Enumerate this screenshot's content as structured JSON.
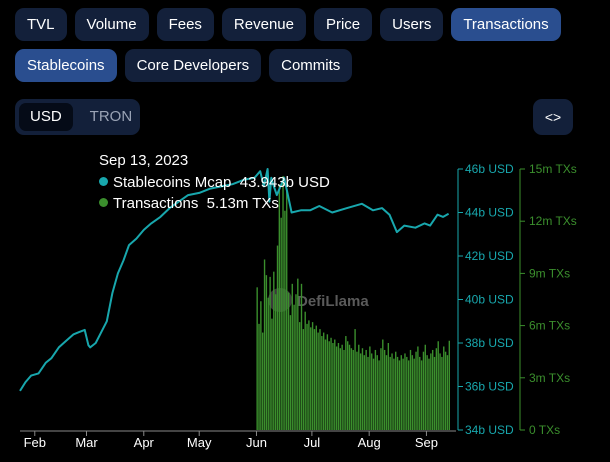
{
  "nav": {
    "row1": [
      "TVL",
      "Volume",
      "Fees",
      "Revenue",
      "Price",
      "Users",
      "Transactions"
    ],
    "row2": [
      "Stablecoins",
      "Core Developers",
      "Commits"
    ],
    "active": [
      "Transactions",
      "Stablecoins"
    ]
  },
  "currency_toggle": {
    "options": [
      "USD",
      "TRON"
    ],
    "selected": "USD"
  },
  "embed_label": "<>",
  "tooltip": {
    "date": "Sep 13, 2023",
    "line1_label": "Stablecoins Mcap",
    "line1_value": "43.943b USD",
    "line2_label": "Transactions",
    "line2_value": "5.13m TXs"
  },
  "watermark": "DefiLlama",
  "colors": {
    "mcap": "#18a7ad",
    "transactions": "#3b8f2d",
    "pill_active": "#2a4e8f",
    "pill": "#13203a"
  },
  "chart_data": {
    "type": "line",
    "x_ticks": [
      "Feb",
      "Mar",
      "Apr",
      "May",
      "Jun",
      "Jul",
      "Aug",
      "Sep"
    ],
    "y_left": {
      "unit": "USD",
      "ticks": [
        "34b USD",
        "36b USD",
        "38b USD",
        "40b USD",
        "42b USD",
        "44b USD",
        "46b USD"
      ],
      "range": [
        34,
        46
      ]
    },
    "y_right": {
      "unit": "TXs",
      "ticks": [
        "0 TXs",
        "3m TXs",
        "6m TXs",
        "9m TXs",
        "12m TXs",
        "15m TXs"
      ],
      "range": [
        0,
        15
      ]
    },
    "series": [
      {
        "name": "Stablecoins Mcap",
        "axis": "left",
        "x": [
          "2023-01-24",
          "2023-01-27",
          "2023-01-30",
          "2023-02-03",
          "2023-02-07",
          "2023-02-10",
          "2023-02-14",
          "2023-02-18",
          "2023-02-22",
          "2023-02-25",
          "2023-02-28",
          "2023-03-02",
          "2023-03-03",
          "2023-03-06",
          "2023-03-09",
          "2023-03-12",
          "2023-03-15",
          "2023-03-18",
          "2023-03-21",
          "2023-03-24",
          "2023-03-28",
          "2023-04-01",
          "2023-04-05",
          "2023-04-10",
          "2023-04-15",
          "2023-04-20",
          "2023-04-25",
          "2023-05-01",
          "2023-05-07",
          "2023-05-13",
          "2023-05-19",
          "2023-05-25",
          "2023-05-31",
          "2023-06-03",
          "2023-06-05",
          "2023-06-07",
          "2023-06-08",
          "2023-06-09",
          "2023-06-10",
          "2023-06-12",
          "2023-06-14",
          "2023-06-16",
          "2023-06-20",
          "2023-06-25",
          "2023-06-30",
          "2023-07-05",
          "2023-07-12",
          "2023-07-20",
          "2023-07-28",
          "2023-08-03",
          "2023-08-08",
          "2023-08-12",
          "2023-08-16",
          "2023-08-20",
          "2023-08-26",
          "2023-08-31",
          "2023-09-03",
          "2023-09-07",
          "2023-09-10",
          "2023-09-13"
        ],
        "values": [
          35.8,
          36.2,
          36.5,
          36.6,
          37.1,
          37.3,
          37.8,
          38.1,
          38.4,
          38.5,
          38.6,
          37.9,
          37.8,
          38.0,
          38.5,
          39.0,
          40.3,
          41.2,
          41.8,
          42.5,
          42.8,
          43.2,
          43.5,
          43.8,
          44.2,
          44.5,
          44.8,
          44.9,
          45.1,
          45.2,
          45.3,
          45.5,
          45.6,
          45.9,
          45.2,
          46.0,
          44.5,
          45.6,
          45.3,
          44.8,
          45.2,
          45.6,
          44.0,
          44.1,
          44.1,
          44.3,
          44.0,
          44.2,
          44.4,
          44.1,
          44.2,
          43.9,
          43.1,
          43.4,
          43.3,
          43.5,
          43.4,
          43.9,
          43.8,
          43.94
        ]
      },
      {
        "name": "Transactions",
        "axis": "right",
        "from": "2023-06-01",
        "to": "2023-09-13",
        "values": [
          8.2,
          6.1,
          7.4,
          5.6,
          9.8,
          8.9,
          7.6,
          8.8,
          6.4,
          9.1,
          7.8,
          10.6,
          14.1,
          12.2,
          14.6,
          12.6,
          13.9,
          7.9,
          6.6,
          8.4,
          7.2,
          7.8,
          8.7,
          6.2,
          8.4,
          5.8,
          6.8,
          6.1,
          6.3,
          5.9,
          6.2,
          5.8,
          6.0,
          5.6,
          5.8,
          5.4,
          5.6,
          5.2,
          5.5,
          5.1,
          5.3,
          5.0,
          5.2,
          4.8,
          5.0,
          4.7,
          4.9,
          4.6,
          5.4,
          5.1,
          4.9,
          4.7,
          4.6,
          5.8,
          4.5,
          4.9,
          4.4,
          4.7,
          4.3,
          4.6,
          4.2,
          4.8,
          4.4,
          4.1,
          4.6,
          4.3,
          4.0,
          4.7,
          5.2,
          4.6,
          4.3,
          5.0,
          4.2,
          4.4,
          4.1,
          4.5,
          4.2,
          4.0,
          4.3,
          4.1,
          4.4,
          4.2,
          4.0,
          4.6,
          4.3,
          4.1,
          4.5,
          4.8,
          4.2,
          4.0,
          4.5,
          4.9,
          4.3,
          4.1,
          4.4,
          4.6,
          4.2,
          4.7,
          5.1,
          4.4,
          4.2,
          4.8,
          4.5,
          4.3,
          5.13
        ]
      }
    ],
    "legend": "tooltip"
  }
}
